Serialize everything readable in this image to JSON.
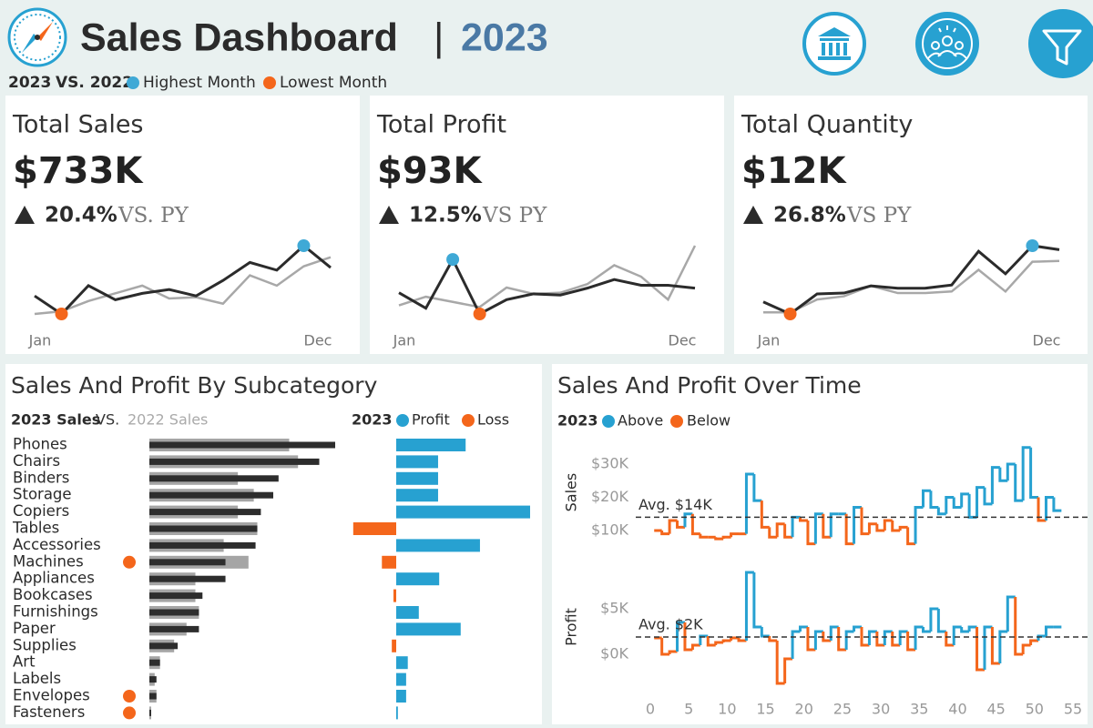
{
  "header": {
    "title": "Sales Dashboard",
    "separator": "|",
    "year": "2023",
    "legend": {
      "current": "2023",
      "previous": "VS. 2022",
      "highest": "Highest Month",
      "highest_color": "#3fa9d6",
      "lowest": "Lowest Month",
      "lowest_color": "#f4661b"
    }
  },
  "kpis": [
    {
      "title": "Total Sales",
      "value": "$733K",
      "change": "20.4%",
      "vs": "VS. PY"
    },
    {
      "title": "Total Profit",
      "value": "$93K",
      "change": "12.5%",
      "vs": "VS PY"
    },
    {
      "title": "Total Quantity",
      "value": "$12K",
      "change": "26.8%",
      "vs": "VS PY"
    }
  ],
  "chart_data": [
    {
      "type": "sparkline",
      "categories": [
        "Jan",
        null,
        null,
        null,
        null,
        null,
        null,
        null,
        null,
        null,
        null,
        "Dec"
      ],
      "series": [
        {
          "color": "#2b2b2b",
          "values": [
            51,
            37,
            59,
            48,
            53,
            56,
            51,
            63,
            77,
            71,
            90,
            73
          ]
        },
        {
          "color": "#a8a8a8",
          "values": [
            37,
            39,
            47,
            53,
            59,
            49,
            50,
            45,
            67,
            59,
            74,
            81
          ]
        }
      ],
      "highlight": {
        "max_color": "#3fa9d6",
        "min_color": "#f4661b"
      }
    },
    {
      "type": "sparkline",
      "categories": [
        "Jan",
        null,
        null,
        null,
        null,
        null,
        null,
        null,
        null,
        null,
        null,
        "Dec"
      ],
      "series": [
        {
          "color": "#2b2b2b",
          "values": [
            7.2,
            4.5,
            13.0,
            3.5,
            6.0,
            7.0,
            6.8,
            8.0,
            9.5,
            8.5,
            8.5,
            8.0
          ]
        },
        {
          "color": "#a8a8a8",
          "values": [
            5.0,
            6.5,
            5.6,
            4.7,
            8.1,
            7.0,
            7.2,
            8.7,
            12.0,
            10.0,
            6.0,
            15.4
          ]
        }
      ],
      "highlight": {
        "max_color": "#3fa9d6",
        "min_color": "#f4661b"
      }
    },
    {
      "type": "sparkline",
      "categories": [
        "Jan",
        null,
        null,
        null,
        null,
        null,
        null,
        null,
        null,
        null,
        null,
        "Dec"
      ],
      "series": [
        {
          "color": "#2b2b2b",
          "values": [
            0.75,
            0.6,
            0.85,
            0.86,
            0.95,
            0.92,
            0.92,
            0.96,
            1.38,
            1.1,
            1.45,
            1.4
          ]
        },
        {
          "color": "#a8a8a8",
          "values": [
            0.62,
            0.62,
            0.78,
            0.82,
            0.95,
            0.86,
            0.86,
            0.88,
            1.15,
            0.88,
            1.25,
            1.26
          ]
        }
      ],
      "highlight": {
        "max_color": "#3fa9d6",
        "min_color": "#f4661b"
      }
    },
    {
      "type": "barh",
      "title": "Sales And Profit By Subcategory",
      "legend_joiner": "VS.",
      "categories": [
        "Phones",
        "Chairs",
        "Binders",
        "Storage",
        "Copiers",
        "Tables",
        "Accessories",
        "Machines",
        "Appliances",
        "Bookcases",
        "Furnishings",
        "Paper",
        "Supplies",
        "Art",
        "Labels",
        "Envelopes",
        "Fasteners"
      ],
      "flags": [
        false,
        false,
        false,
        false,
        false,
        false,
        false,
        true,
        false,
        false,
        false,
        false,
        false,
        false,
        false,
        true,
        true
      ],
      "flag_color": "#f4661b",
      "series": [
        {
          "name": "2023 Sales",
          "color": "#2d2d2d",
          "values": [
            105,
            96,
            73,
            70,
            63,
            61,
            60,
            43,
            43,
            30,
            28,
            28,
            16,
            6,
            4,
            4,
            1
          ]
        },
        {
          "name": "2022 Sales",
          "color": "#a5a5a5",
          "values": [
            79,
            84,
            50,
            59,
            50,
            61,
            42,
            56,
            26,
            26,
            28,
            21,
            14,
            6,
            3,
            4,
            1
          ]
        }
      ]
    },
    {
      "type": "diverging",
      "legend_title": "2023",
      "legend": [
        {
          "name": "Profit",
          "color": "#27a1d1"
        },
        {
          "name": "Loss",
          "color": "#f4661b"
        }
      ],
      "values": [
        12.6,
        7.6,
        7.6,
        7.6,
        24.3,
        -7.8,
        15.2,
        -2.6,
        7.8,
        -0.5,
        4.1,
        11.7,
        -0.8,
        2.1,
        1.8,
        1.8,
        0.3
      ]
    },
    {
      "type": "step",
      "title": "Sales And Profit Over Time",
      "legend_title": "2023",
      "legend": [
        {
          "name": "Above",
          "color": "#27a1d1"
        },
        {
          "name": "Below",
          "color": "#f4661b"
        }
      ],
      "ylabel": "Sales",
      "avg": 14,
      "avg_label": "Avg. $14K",
      "x": [
        1,
        2,
        3,
        4,
        5,
        6,
        7,
        8,
        9,
        10,
        11,
        12,
        13,
        14,
        15,
        16,
        17,
        18,
        19,
        20,
        21,
        22,
        23,
        24,
        25,
        26,
        27,
        28,
        29,
        30,
        31,
        32,
        33,
        34,
        35,
        36,
        37,
        38,
        39,
        40,
        41,
        42,
        43,
        44,
        45,
        46,
        47,
        48,
        49,
        50,
        51,
        52,
        53
      ],
      "values": [
        10,
        9,
        13,
        11,
        15,
        9,
        8,
        8,
        7.5,
        8,
        9,
        9,
        27,
        19,
        11,
        8,
        12,
        8,
        14,
        13,
        6,
        15,
        8,
        15,
        15,
        6,
        17,
        9,
        12,
        10,
        13,
        10,
        11,
        6,
        17,
        22,
        17,
        15,
        20,
        17,
        21,
        14,
        23,
        18,
        29,
        25,
        30,
        19,
        35,
        20,
        13,
        20,
        16
      ],
      "xlim": [
        0,
        55
      ],
      "ylim": [
        6,
        37
      ],
      "yticks": [
        {
          "value": 10,
          "label": "$10K"
        },
        {
          "value": 20,
          "label": "$20K"
        },
        {
          "value": 30,
          "label": "$30K"
        }
      ]
    },
    {
      "type": "step",
      "ylabel": "Profit",
      "avg": 1.9,
      "avg_label": "Avg. $2K",
      "legend": [
        {
          "name": "Above",
          "color": "#27a1d1"
        },
        {
          "name": "Below",
          "color": "#f4661b"
        }
      ],
      "x": [
        1,
        2,
        3,
        4,
        5,
        6,
        7,
        8,
        9,
        10,
        11,
        12,
        13,
        14,
        15,
        16,
        17,
        18,
        19,
        20,
        21,
        22,
        23,
        24,
        25,
        26,
        27,
        28,
        29,
        30,
        31,
        32,
        33,
        34,
        35,
        36,
        37,
        38,
        39,
        40,
        41,
        42,
        43,
        44,
        45,
        46,
        47,
        48,
        49,
        50,
        51,
        52,
        53
      ],
      "values": [
        1.8,
        0,
        0.3,
        3.5,
        0.5,
        1,
        2,
        1,
        1.3,
        1.5,
        1.8,
        1.5,
        9,
        3,
        2,
        1.5,
        -3.2,
        -0.5,
        2.5,
        3,
        0.5,
        2.5,
        1.5,
        3,
        0.5,
        2.5,
        3,
        1,
        2.5,
        1,
        2.5,
        1,
        2.5,
        0.5,
        3,
        2.5,
        5,
        2.5,
        1,
        3,
        2.5,
        3,
        -1.7,
        3,
        -1,
        2.5,
        6.3,
        0,
        1,
        1.5,
        2,
        3,
        3
      ],
      "xlim": [
        0,
        55
      ],
      "ylim": [
        -3.6,
        9.6
      ],
      "yticks": [
        {
          "value": 0,
          "label": "$0K"
        },
        {
          "value": 5,
          "label": "$5K"
        }
      ],
      "xticks": [
        0,
        5,
        10,
        15,
        20,
        25,
        30,
        35,
        40,
        45,
        50,
        55
      ]
    }
  ]
}
